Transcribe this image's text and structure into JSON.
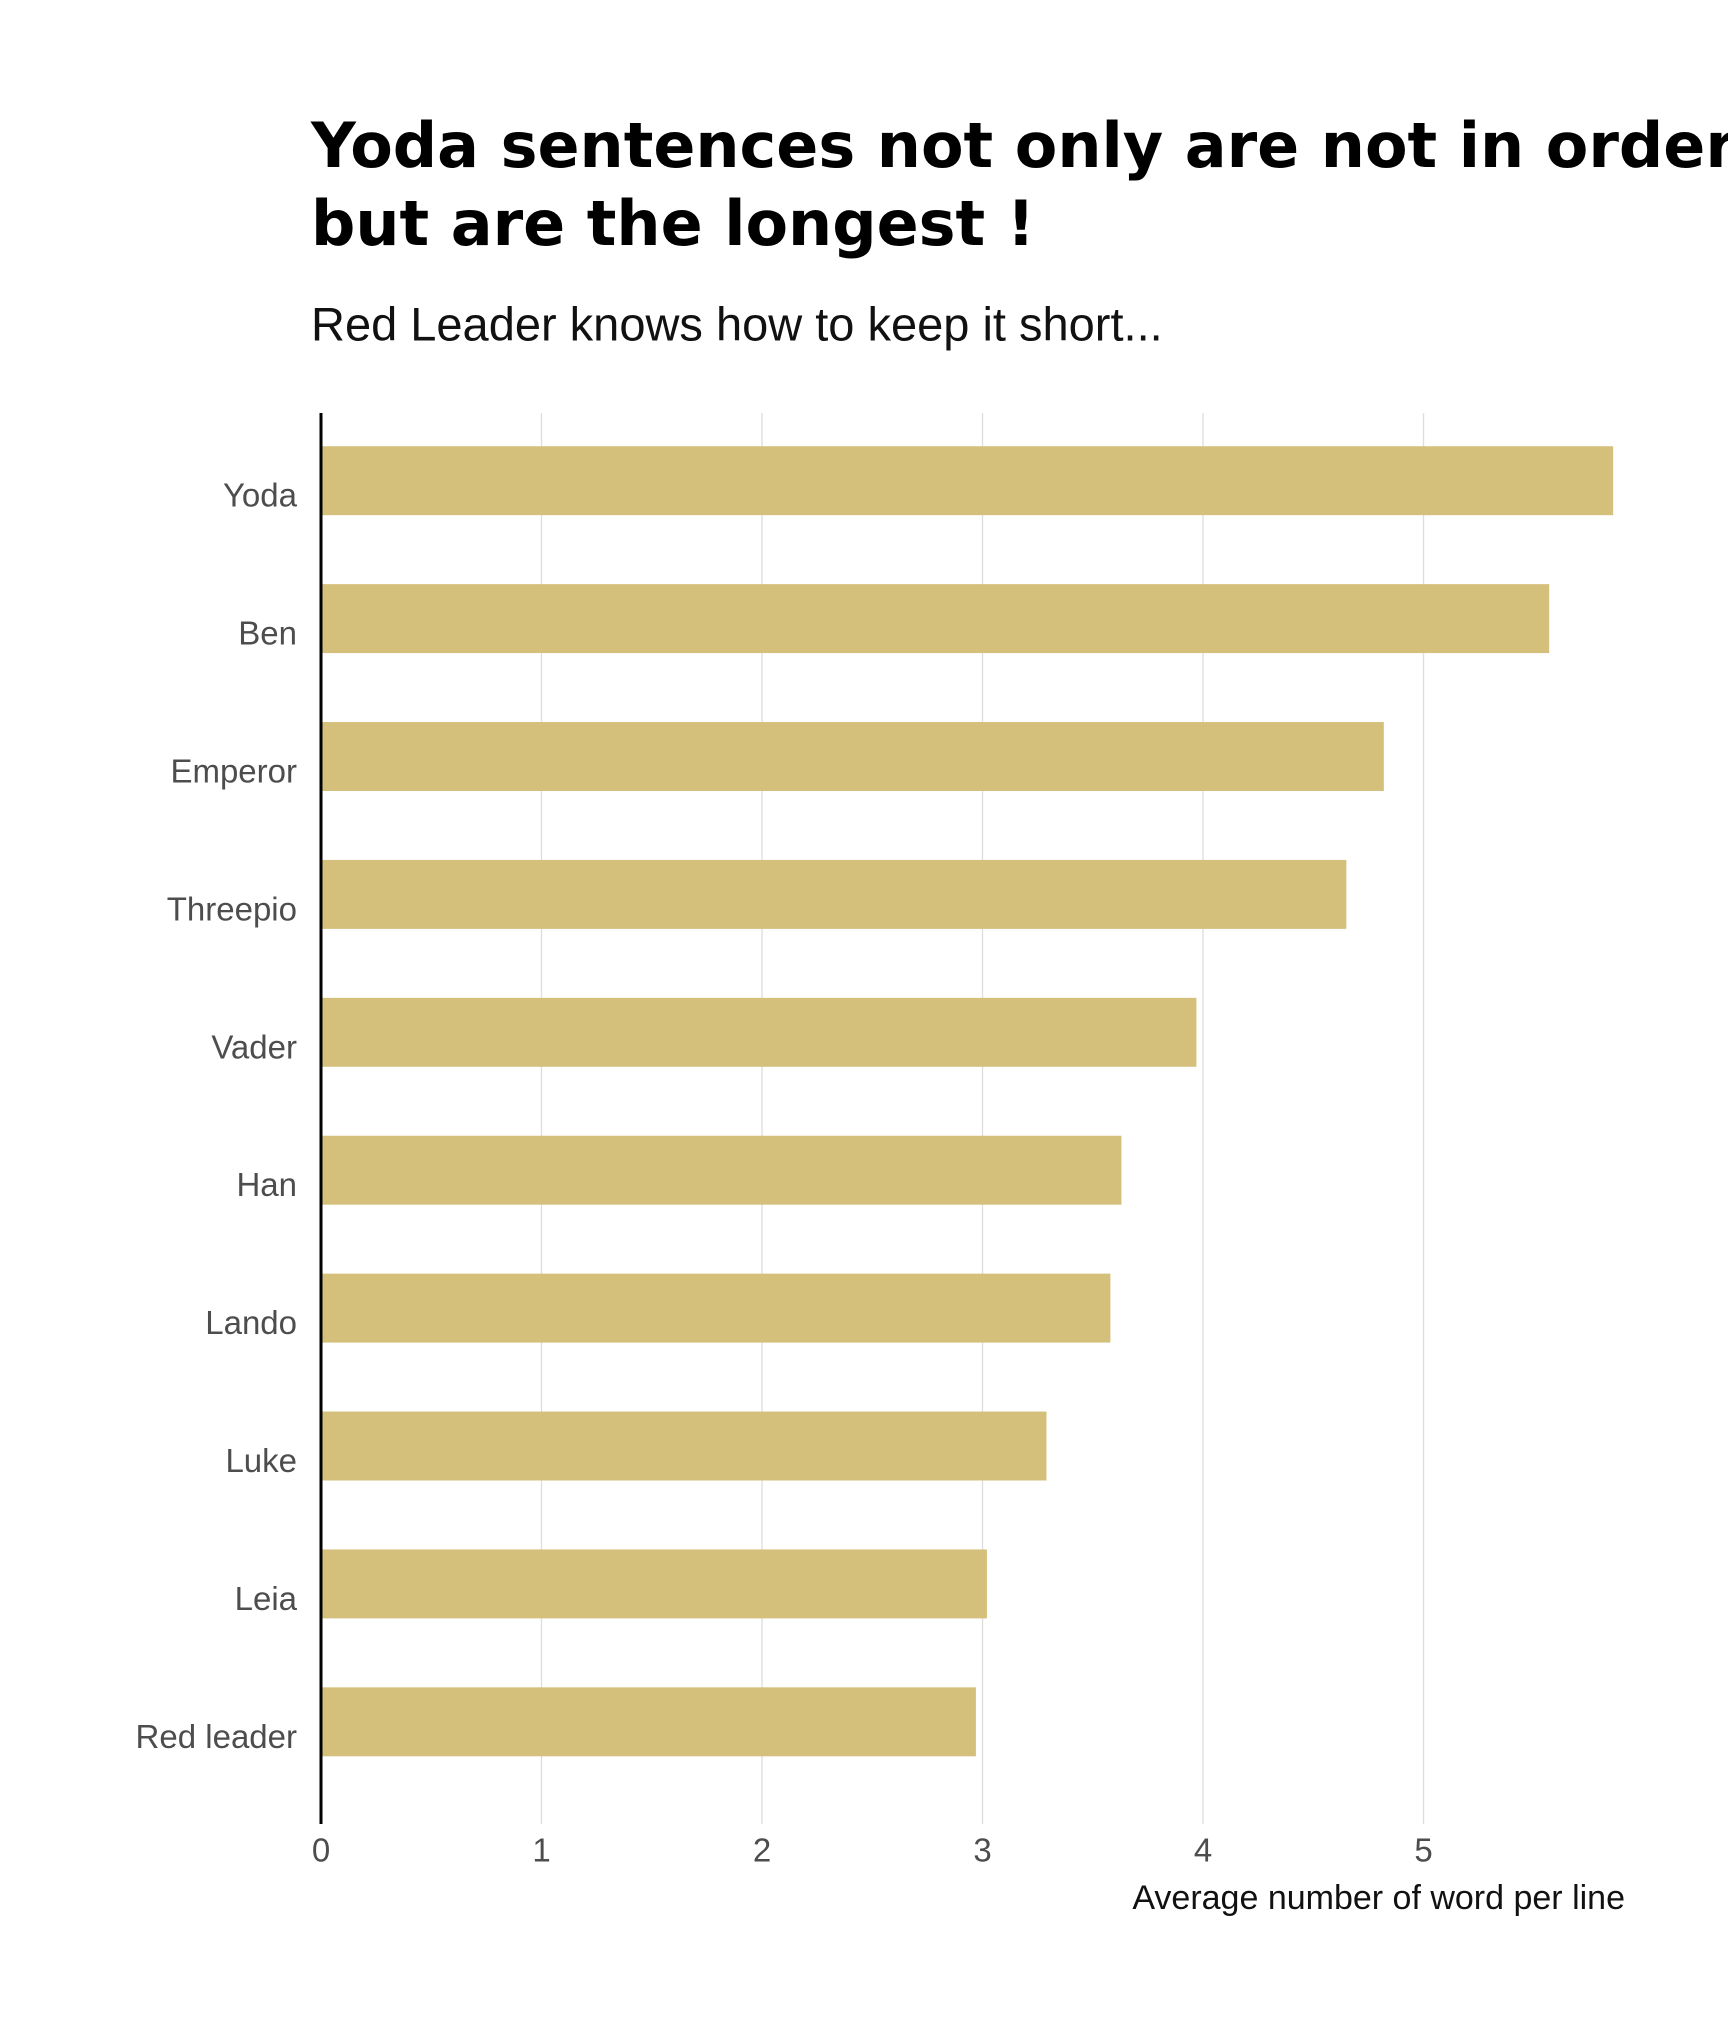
{
  "chart_data": {
    "type": "barh",
    "title": [
      "Yoda sentences not only are not in order",
      "but are the longest !"
    ],
    "subtitle": "Red Leader knows how to keep it short...",
    "xlabel": "Average number of word per line",
    "categories": [
      "Yoda",
      "Ben",
      "Emperor",
      "Threepio",
      "Vader",
      "Han",
      "Lando",
      "Luke",
      "Leia",
      "Red leader"
    ],
    "values": [
      5.86,
      5.57,
      4.82,
      4.65,
      3.97,
      3.63,
      3.58,
      3.29,
      3.02,
      2.97
    ],
    "color": "#d4c07b",
    "xlim": [
      0,
      5.95
    ],
    "xticks": [
      0,
      1,
      2,
      3,
      4,
      5
    ],
    "grid": true
  }
}
